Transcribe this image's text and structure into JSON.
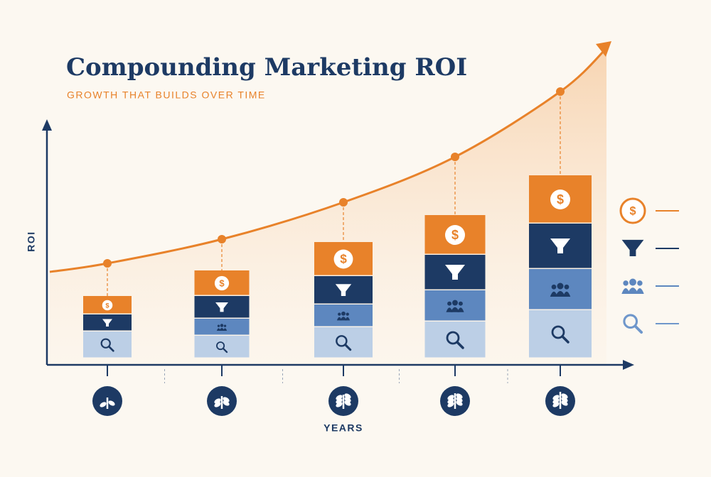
{
  "chart_data": {
    "type": "stacked_bar",
    "title": "Compounding Marketing ROI",
    "subtitle": "GROWTH THAT BUILDS OVER TIME",
    "y_label": "ROI",
    "x_label": "YEARS",
    "categories": [
      null,
      null,
      null,
      null,
      null
    ],
    "series": [
      {
        "color": "#bccfe6",
        "values": [
          9.5,
          8,
          11,
          13,
          17
        ]
      },
      {
        "color": "#5d87bf",
        "values": [
          0,
          6,
          8,
          11,
          14.5
        ]
      },
      {
        "color": "#1d3a64",
        "values": [
          6,
          8,
          10,
          12.5,
          16
        ]
      },
      {
        "color": "#e8822a",
        "values": [
          6.5,
          9,
          12,
          14,
          17
        ]
      }
    ],
    "line": {
      "color": "#e8822a",
      "values": [
        33.5,
        42,
        55,
        71,
        94
      ]
    },
    "ylim": [
      0,
      110
    ],
    "legend": "right"
  }
}
